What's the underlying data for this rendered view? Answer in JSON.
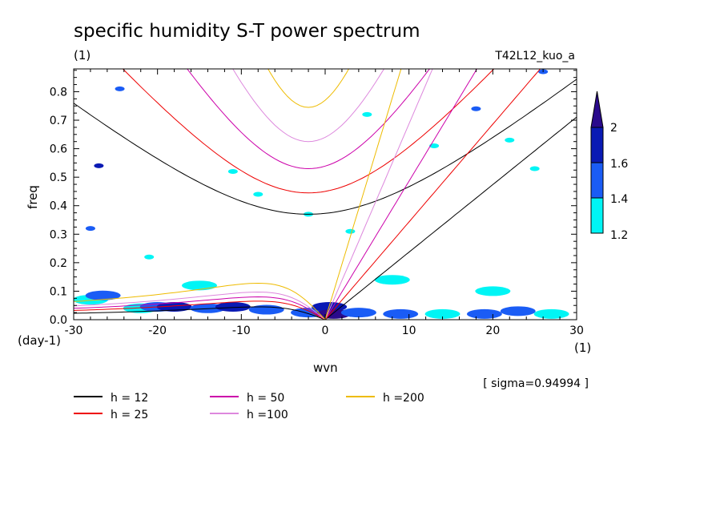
{
  "chart_data": {
    "type": "contour",
    "title": "specific humidity S-T power spectrum",
    "subtitle_left": "(1)",
    "subtitle_right": "T42L12_kuo_a",
    "xlabel": "wvn",
    "ylabel": "freq",
    "x_unit": "(1)",
    "y_unit": "(day-1)",
    "xlim": [
      -30,
      30
    ],
    "ylim": [
      0,
      0.88
    ],
    "x_ticks": [
      -30,
      -20,
      -10,
      0,
      10,
      20,
      30
    ],
    "y_ticks": [
      0.0,
      0.1,
      0.2,
      0.3,
      0.4,
      0.5,
      0.6,
      0.7,
      0.8
    ],
    "sigma_text": "[ sigma=0.94994 ]",
    "colorbar": {
      "levels": [
        1.2,
        1.4,
        1.6,
        2
      ],
      "labels": [
        "1.2",
        "1.4",
        "1.6",
        "2"
      ],
      "colors": [
        "#00f5f5",
        "#1a5cf5",
        "#0a1ab4",
        "#2a0a8c"
      ]
    },
    "dispersion_curves": [
      {
        "label": "h = 12",
        "h": 12,
        "color": "#000000",
        "gravity_min": 0.37,
        "kelvin_slope": 0.0237
      },
      {
        "label": "h = 25",
        "h": 25,
        "color": "#ee0000",
        "gravity_min": 0.445,
        "kelvin_slope": 0.0343
      },
      {
        "label": "h = 50",
        "h": 50,
        "color": "#cc00aa",
        "gravity_min": 0.53,
        "kelvin_slope": 0.0486
      },
      {
        "label": "h =100",
        "h": 100,
        "color": "#dd88dd",
        "gravity_min": 0.625,
        "kelvin_slope": 0.0687
      },
      {
        "label": "h =200",
        "h": 200,
        "color": "#eebb00",
        "gravity_min": 0.745,
        "kelvin_slope": 0.0972
      }
    ],
    "rossby_peaks": [
      {
        "k": -8,
        "f": 0.045
      },
      {
        "k": -8,
        "f": 0.065
      },
      {
        "k": -8,
        "f": 0.08
      },
      {
        "k": -8,
        "f": 0.097
      },
      {
        "k": -8,
        "f": 0.128
      }
    ],
    "significant_regions": [
      {
        "x": -28,
        "y": 0.07,
        "level": 1.2
      },
      {
        "x": -26.5,
        "y": 0.085,
        "level": 1.4
      },
      {
        "x": -22,
        "y": 0.04,
        "level": 1.2
      },
      {
        "x": -20,
        "y": 0.045,
        "level": 1.4
      },
      {
        "x": -18,
        "y": 0.045,
        "level": 1.6
      },
      {
        "x": -14,
        "y": 0.04,
        "level": 1.4
      },
      {
        "x": -11,
        "y": 0.045,
        "level": 1.6
      },
      {
        "x": -7,
        "y": 0.035,
        "level": 1.4
      },
      {
        "x": -2,
        "y": 0.025,
        "level": 1.4
      },
      {
        "x": 0.5,
        "y": 0.045,
        "level": 1.6
      },
      {
        "x": 1,
        "y": 0.02,
        "level": 2
      },
      {
        "x": 4,
        "y": 0.025,
        "level": 1.4
      },
      {
        "x": 9,
        "y": 0.02,
        "level": 1.4
      },
      {
        "x": 14,
        "y": 0.02,
        "level": 1.2
      },
      {
        "x": 19,
        "y": 0.02,
        "level": 1.4
      },
      {
        "x": 23,
        "y": 0.03,
        "level": 1.4
      },
      {
        "x": 27,
        "y": 0.02,
        "level": 1.2
      },
      {
        "x": -28,
        "y": 0.32,
        "level": 1.4
      },
      {
        "x": -27,
        "y": 0.54,
        "level": 1.6
      },
      {
        "x": -24.5,
        "y": 0.81,
        "level": 1.4
      },
      {
        "x": -21,
        "y": 0.22,
        "level": 1.2
      },
      {
        "x": -11,
        "y": 0.52,
        "level": 1.2
      },
      {
        "x": -8,
        "y": 0.44,
        "level": 1.2
      },
      {
        "x": -2,
        "y": 0.37,
        "level": 1.2
      },
      {
        "x": 3,
        "y": 0.31,
        "level": 1.2
      },
      {
        "x": 5,
        "y": 0.72,
        "level": 1.2
      },
      {
        "x": 13,
        "y": 0.61,
        "level": 1.2
      },
      {
        "x": 18,
        "y": 0.74,
        "level": 1.4
      },
      {
        "x": 22,
        "y": 0.63,
        "level": 1.2
      },
      {
        "x": 25,
        "y": 0.53,
        "level": 1.2
      },
      {
        "x": 26,
        "y": 0.87,
        "level": 1.4
      },
      {
        "x": -15,
        "y": 0.12,
        "level": 1.2
      },
      {
        "x": 8,
        "y": 0.14,
        "level": 1.2
      },
      {
        "x": 20,
        "y": 0.1,
        "level": 1.2
      }
    ]
  }
}
